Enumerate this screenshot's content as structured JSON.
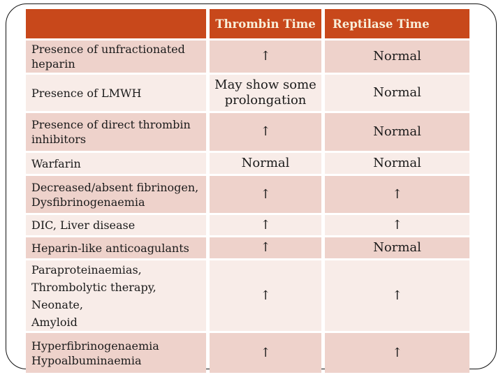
{
  "slide": {
    "type": "presentation-slide-with-table",
    "colors": {
      "header_bg": "#c8481b",
      "header_text": "#f8efda",
      "row_band_dark": "#eed2cb",
      "row_band_light": "#f8ece8",
      "body_text": "#1b1b1b",
      "frame_border": "#111111"
    }
  },
  "table": {
    "columns": [
      "",
      "Thrombin Time",
      "Reptilase Time"
    ],
    "rows": [
      {
        "label": "Presence of unfractionated\nheparin",
        "thrombin": "↑",
        "reptilase": "Normal"
      },
      {
        "label": "Presence of LMWH",
        "thrombin": "May show some\nprolongation",
        "reptilase": "Normal"
      },
      {
        "label": "Presence of direct thrombin\ninhibitors",
        "thrombin": "↑",
        "reptilase": "Normal"
      },
      {
        "label": "Warfarin",
        "thrombin": "Normal",
        "reptilase": "Normal"
      },
      {
        "label": "Decreased/absent fibrinogen,\nDysfibrinogenaemia",
        "thrombin": "↑",
        "reptilase": "↑"
      },
      {
        "label": "DIC, Liver disease",
        "thrombin": "↑",
        "reptilase": "↑"
      },
      {
        "label": "Heparin-like anticoagulants",
        "thrombin": "↑",
        "reptilase": "Normal"
      },
      {
        "label": "Paraproteinaemias,\nThrombolytic therapy,\nNeonate,\nAmyloid",
        "thrombin": "↑",
        "reptilase": "↑"
      },
      {
        "label": "Hyperfibrinogenaemia\nHypoalbuminaemia",
        "thrombin": "↑",
        "reptilase": "↑"
      }
    ]
  }
}
